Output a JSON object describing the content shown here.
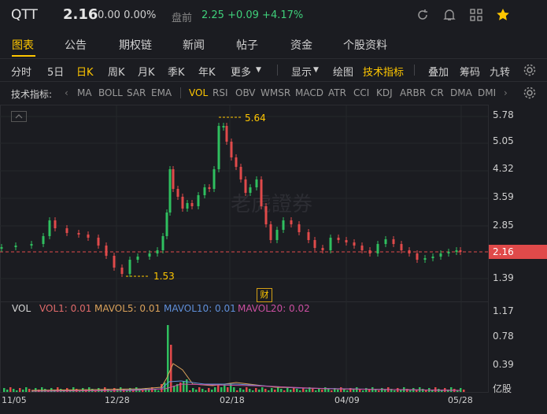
{
  "header": {
    "symbol": "QTT",
    "price": "2.16",
    "change": "0.00 0.00%",
    "premarket_label": "盘前",
    "premarket": "2.25 +0.09 +4.17%"
  },
  "tabs": [
    {
      "label": "图表"
    },
    {
      "label": "公告"
    },
    {
      "label": "期权链"
    },
    {
      "label": "新闻"
    },
    {
      "label": "帖子"
    },
    {
      "label": "资金"
    },
    {
      "label": "个股资料"
    }
  ],
  "toolbar": {
    "items": [
      "分时",
      "5日",
      "日K",
      "周K",
      "月K",
      "季K",
      "年K",
      "更多",
      "显示",
      "绘图",
      "技术指标",
      "叠加",
      "筹码",
      "九转"
    ]
  },
  "indicators": {
    "label": "技术指标:",
    "items": [
      "MA",
      "BOLL",
      "SAR",
      "EMA",
      "VOL",
      "RSI",
      "OBV",
      "WMSR",
      "MACD",
      "ATR",
      "CCI",
      "KDJ",
      "ARBR",
      "CR",
      "DMA",
      "DMI"
    ]
  },
  "chart": {
    "yticks": [
      "5.78",
      "5.05",
      "4.32",
      "3.59",
      "2.85",
      "2.16",
      "1.39"
    ],
    "xticks": [
      "11/05",
      "12/28",
      "02/18",
      "04/09",
      "05/28"
    ],
    "current_price": "2.16",
    "max_annot": "5.64",
    "min_annot": "1.53",
    "watermark": "老虎證券",
    "event_marker": "财",
    "vol": {
      "label": "VOL",
      "vol1": "VOL1: 0.01",
      "mavol5": "MAVOL5: 0.01",
      "mavol10": "MAVOL10: 0.01",
      "mavol20": "MAVOL20: 0.02",
      "yticks": [
        "1.17",
        "0.78",
        "0.39",
        "亿股"
      ]
    }
  },
  "colors": {
    "up": "#2fbf5f",
    "down": "#e04a4a",
    "accent": "#ffc700",
    "mavol5": "#d9a15a",
    "mavol10": "#5f8fd9",
    "mavol20": "#c94fa0"
  }
}
